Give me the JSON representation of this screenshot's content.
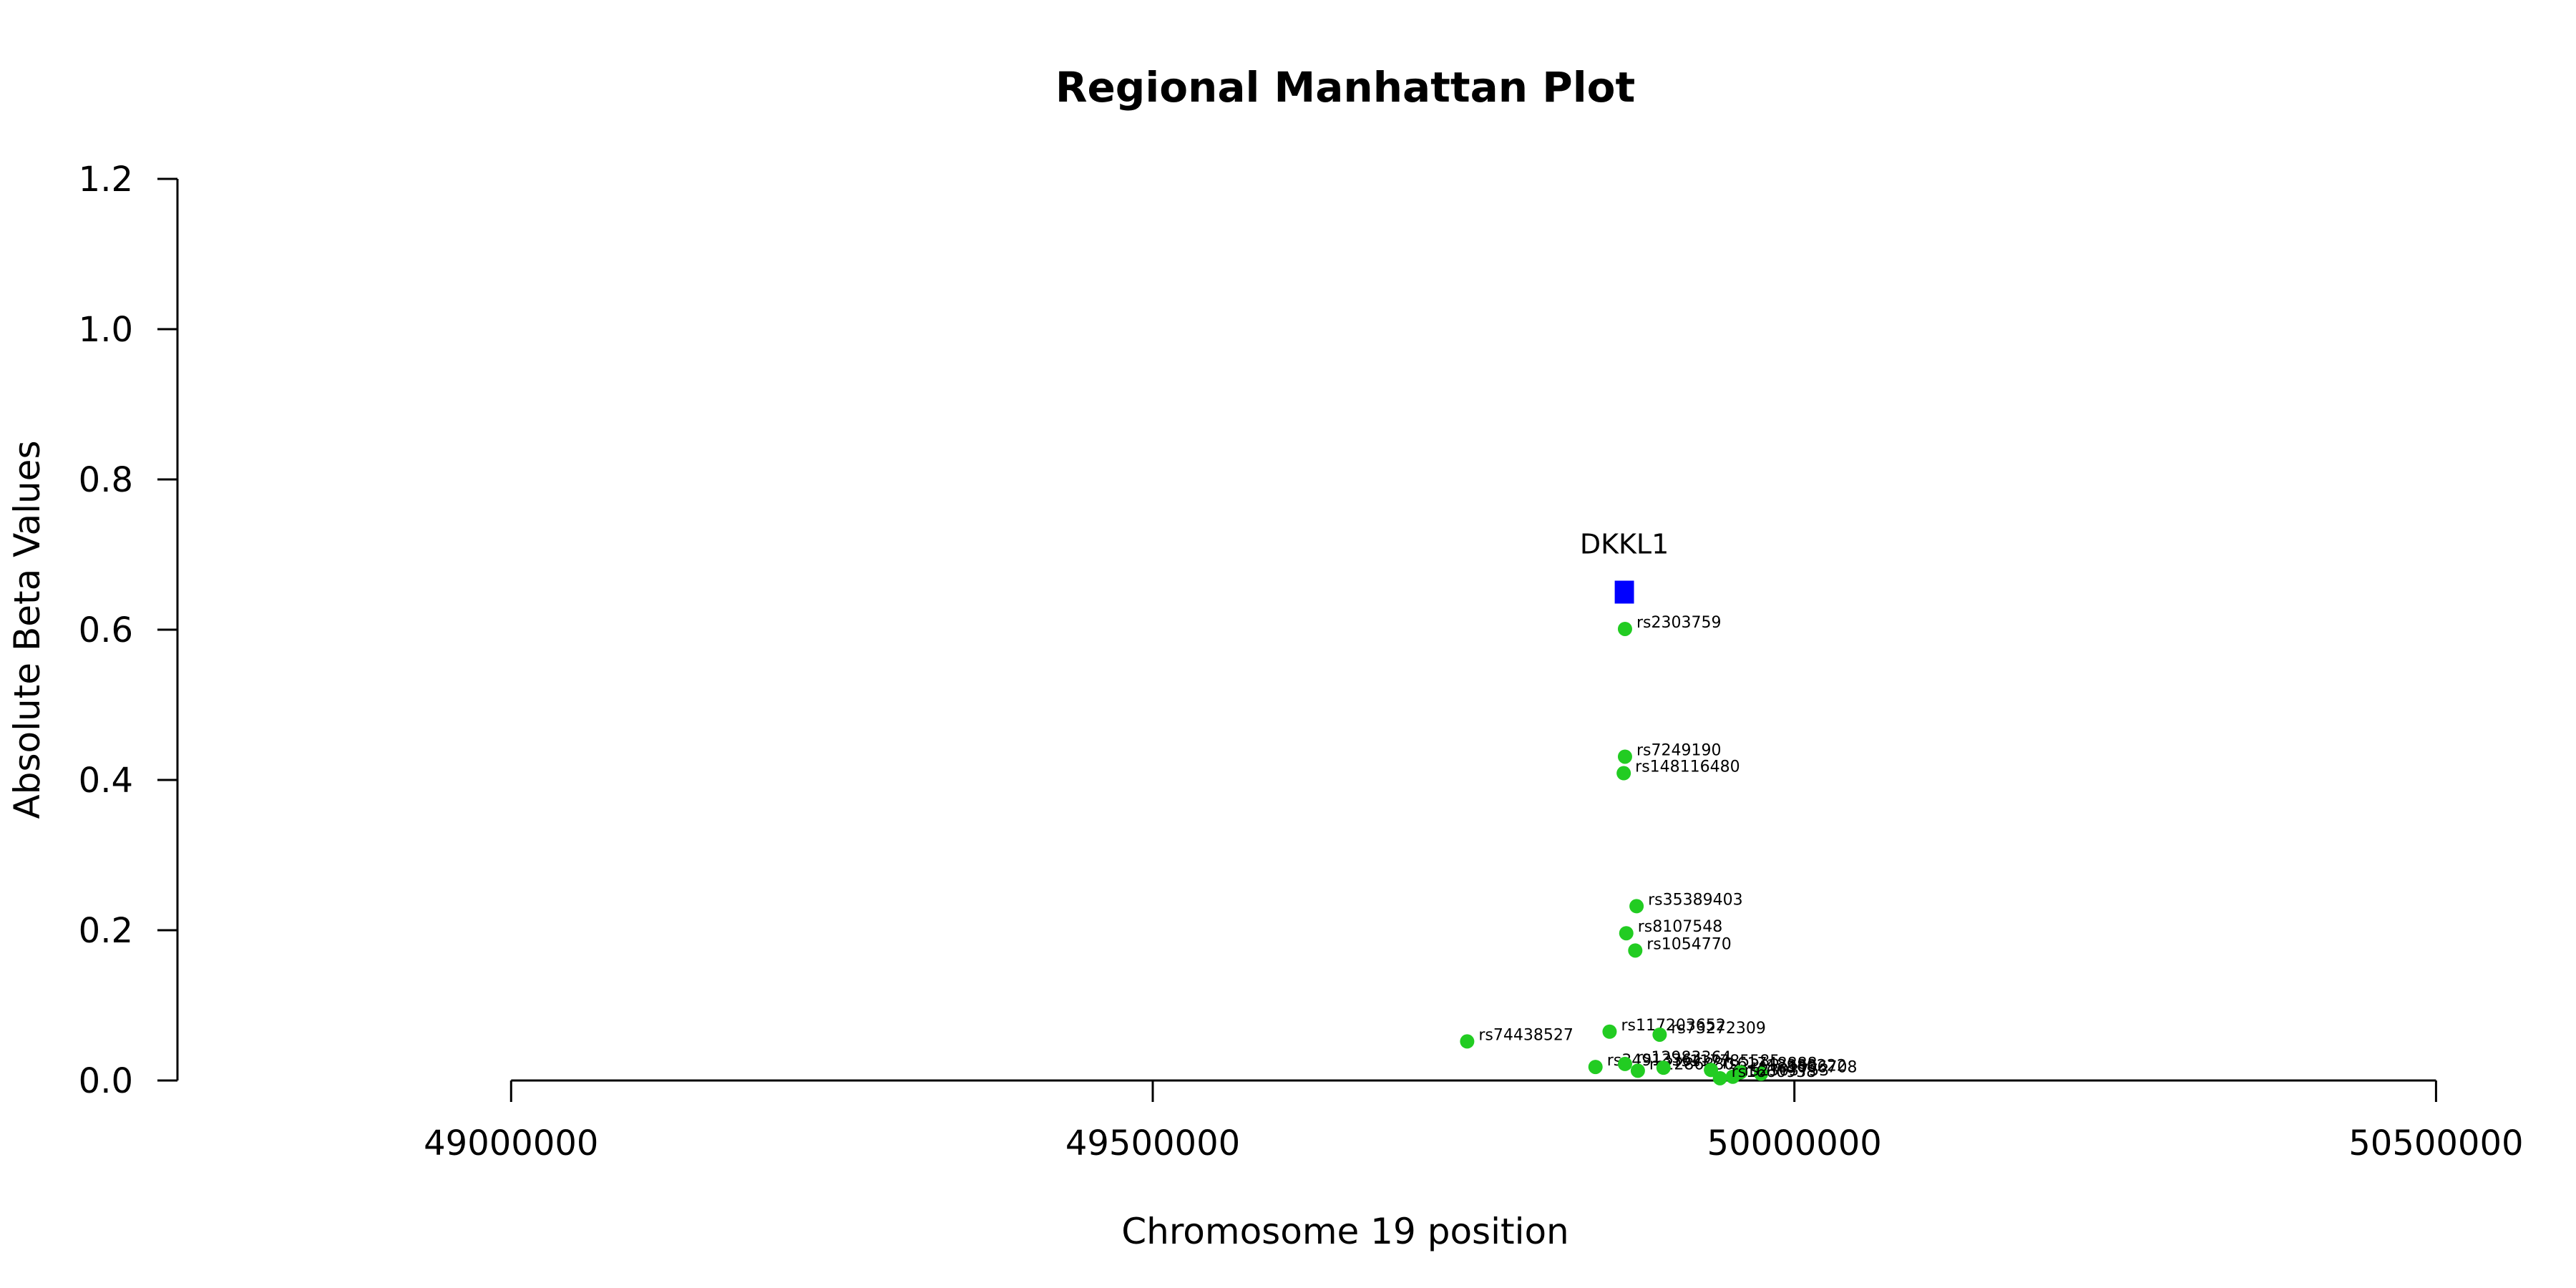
{
  "chart_data": {
    "type": "scatter",
    "title": "Regional Manhattan Plot",
    "xlabel": "Chromosome 19 position",
    "ylabel": "Absolute Beta Values",
    "xlim": [
      48740000,
      50560000
    ],
    "ylim": [
      0,
      1.2
    ],
    "x_axis_range": [
      49000000,
      50500000
    ],
    "x_ticks": [
      49000000,
      49500000,
      50000000,
      50500000
    ],
    "x_tick_labels": [
      "49000000",
      "49500000",
      "50000000",
      "50500000"
    ],
    "y_ticks": [
      0,
      0.2,
      0.4,
      0.6,
      0.8,
      1.0,
      1.2
    ],
    "y_tick_labels": [
      "0.0",
      "0.2",
      "0.4",
      "0.6",
      "0.8",
      "1.0",
      "1.2"
    ],
    "grid": false,
    "point_color": "#22cc22",
    "gene_color": "#0000ff",
    "genes": [
      {
        "name": "DKKL1",
        "start": 49860000,
        "end": 49875000,
        "y": 0.65
      }
    ],
    "points": [
      {
        "label": "rs2303759",
        "x": 49868000,
        "y": 0.601
      },
      {
        "label": "rs7249190",
        "x": 49868000,
        "y": 0.431
      },
      {
        "label": "rs148116480",
        "x": 49867000,
        "y": 0.409
      },
      {
        "label": "rs35389403",
        "x": 49877000,
        "y": 0.232
      },
      {
        "label": "rs8107548",
        "x": 49869000,
        "y": 0.196
      },
      {
        "label": "rs1054770",
        "x": 49876000,
        "y": 0.173
      },
      {
        "label": "rs117203652",
        "x": 49856000,
        "y": 0.065
      },
      {
        "label": "rs73272309",
        "x": 49895000,
        "y": 0.061
      },
      {
        "label": "rs74438527",
        "x": 49745000,
        "y": 0.052
      },
      {
        "label": "rs34913364",
        "x": 49845000,
        "y": 0.018
      },
      {
        "label": "rs12983364",
        "x": 49868000,
        "y": 0.022
      },
      {
        "label": "rs2286880",
        "x": 49878000,
        "y": 0.013
      },
      {
        "label": "rs117785585",
        "x": 49898000,
        "y": 0.017
      },
      {
        "label": "rs61748888",
        "x": 49935000,
        "y": 0.014
      },
      {
        "label": "rs12980222",
        "x": 49958000,
        "y": 0.011
      },
      {
        "label": "rs1006708",
        "x": 49974000,
        "y": 0.009
      },
      {
        "label": "rs2303753",
        "x": 49952000,
        "y": 0.005
      },
      {
        "label": "rs1660938",
        "x": 49942000,
        "y": 0.003
      }
    ]
  }
}
